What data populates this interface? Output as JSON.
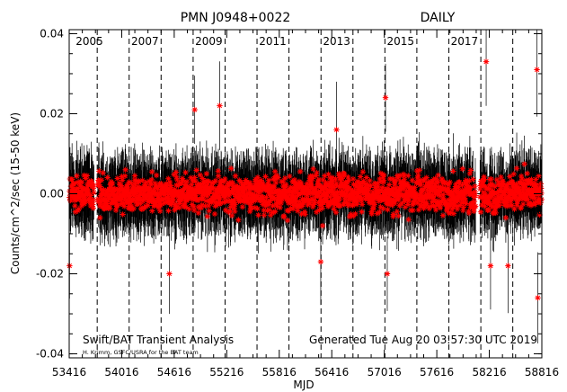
{
  "chart_data": {
    "type": "scatter",
    "title": "PMN J0948+0022",
    "subtitle": "DAILY",
    "xlabel": "MJD",
    "ylabel": "Counts/cm^2/sec (15-50 keV)",
    "xlim": [
      53416,
      58816
    ],
    "ylim": [
      -0.041,
      0.041
    ],
    "x_ticks": [
      53416,
      54016,
      54616,
      55216,
      55816,
      56416,
      57016,
      57616,
      58216,
      58816
    ],
    "x_tick_labels": [
      "53416",
      "54016",
      "54616",
      "55216",
      "55816",
      "56416",
      "57016",
      "57616",
      "58216",
      "58816"
    ],
    "y_ticks": [
      -0.04,
      -0.02,
      0.0,
      0.02,
      0.04
    ],
    "y_tick_labels": [
      "-0.04",
      "-0.02",
      "0.00",
      "0.02",
      "0.04"
    ],
    "year_boundaries": [
      53736,
      54101,
      54466,
      54832,
      55197,
      55562,
      55927,
      56293,
      56658,
      57023,
      57388,
      57754,
      58119,
      58484
    ],
    "year_labels": [
      {
        "label": "2005",
        "x": 53490
      },
      {
        "label": "2007",
        "x": 54125
      },
      {
        "label": "2009",
        "x": 54855
      },
      {
        "label": "2011",
        "x": 55585
      },
      {
        "label": "2013",
        "x": 56315
      },
      {
        "label": "2015",
        "x": 57045
      },
      {
        "label": "2017",
        "x": 57775
      }
    ],
    "zero_line": 0.0,
    "series": [
      {
        "marker": "asterisk",
        "color": "#ff0000",
        "errorbar_color": "#000000",
        "x_range": [
          53416,
          58816
        ],
        "typical_value": 0.0,
        "typical_error": 0.006,
        "notable_points": [
          {
            "x": 53420,
            "y": -0.018
          },
          {
            "x": 54560,
            "y": -0.02
          },
          {
            "x": 54850,
            "y": 0.021
          },
          {
            "x": 55135,
            "y": 0.022
          },
          {
            "x": 56290,
            "y": -0.017
          },
          {
            "x": 56470,
            "y": 0.016
          },
          {
            "x": 57030,
            "y": 0.024
          },
          {
            "x": 57050,
            "y": -0.02
          },
          {
            "x": 58180,
            "y": 0.033
          },
          {
            "x": 58230,
            "y": -0.018
          },
          {
            "x": 58430,
            "y": -0.018
          },
          {
            "x": 58760,
            "y": 0.031
          },
          {
            "x": 58770,
            "y": -0.026
          }
        ]
      }
    ]
  },
  "annotations": {
    "left": "Swift/BAT Transient Analysis",
    "credit": "H. Krimm, GSFC/USRA for the BAT team",
    "right": "Generated Tue Aug 20 03:57:30 UTC 2019"
  }
}
